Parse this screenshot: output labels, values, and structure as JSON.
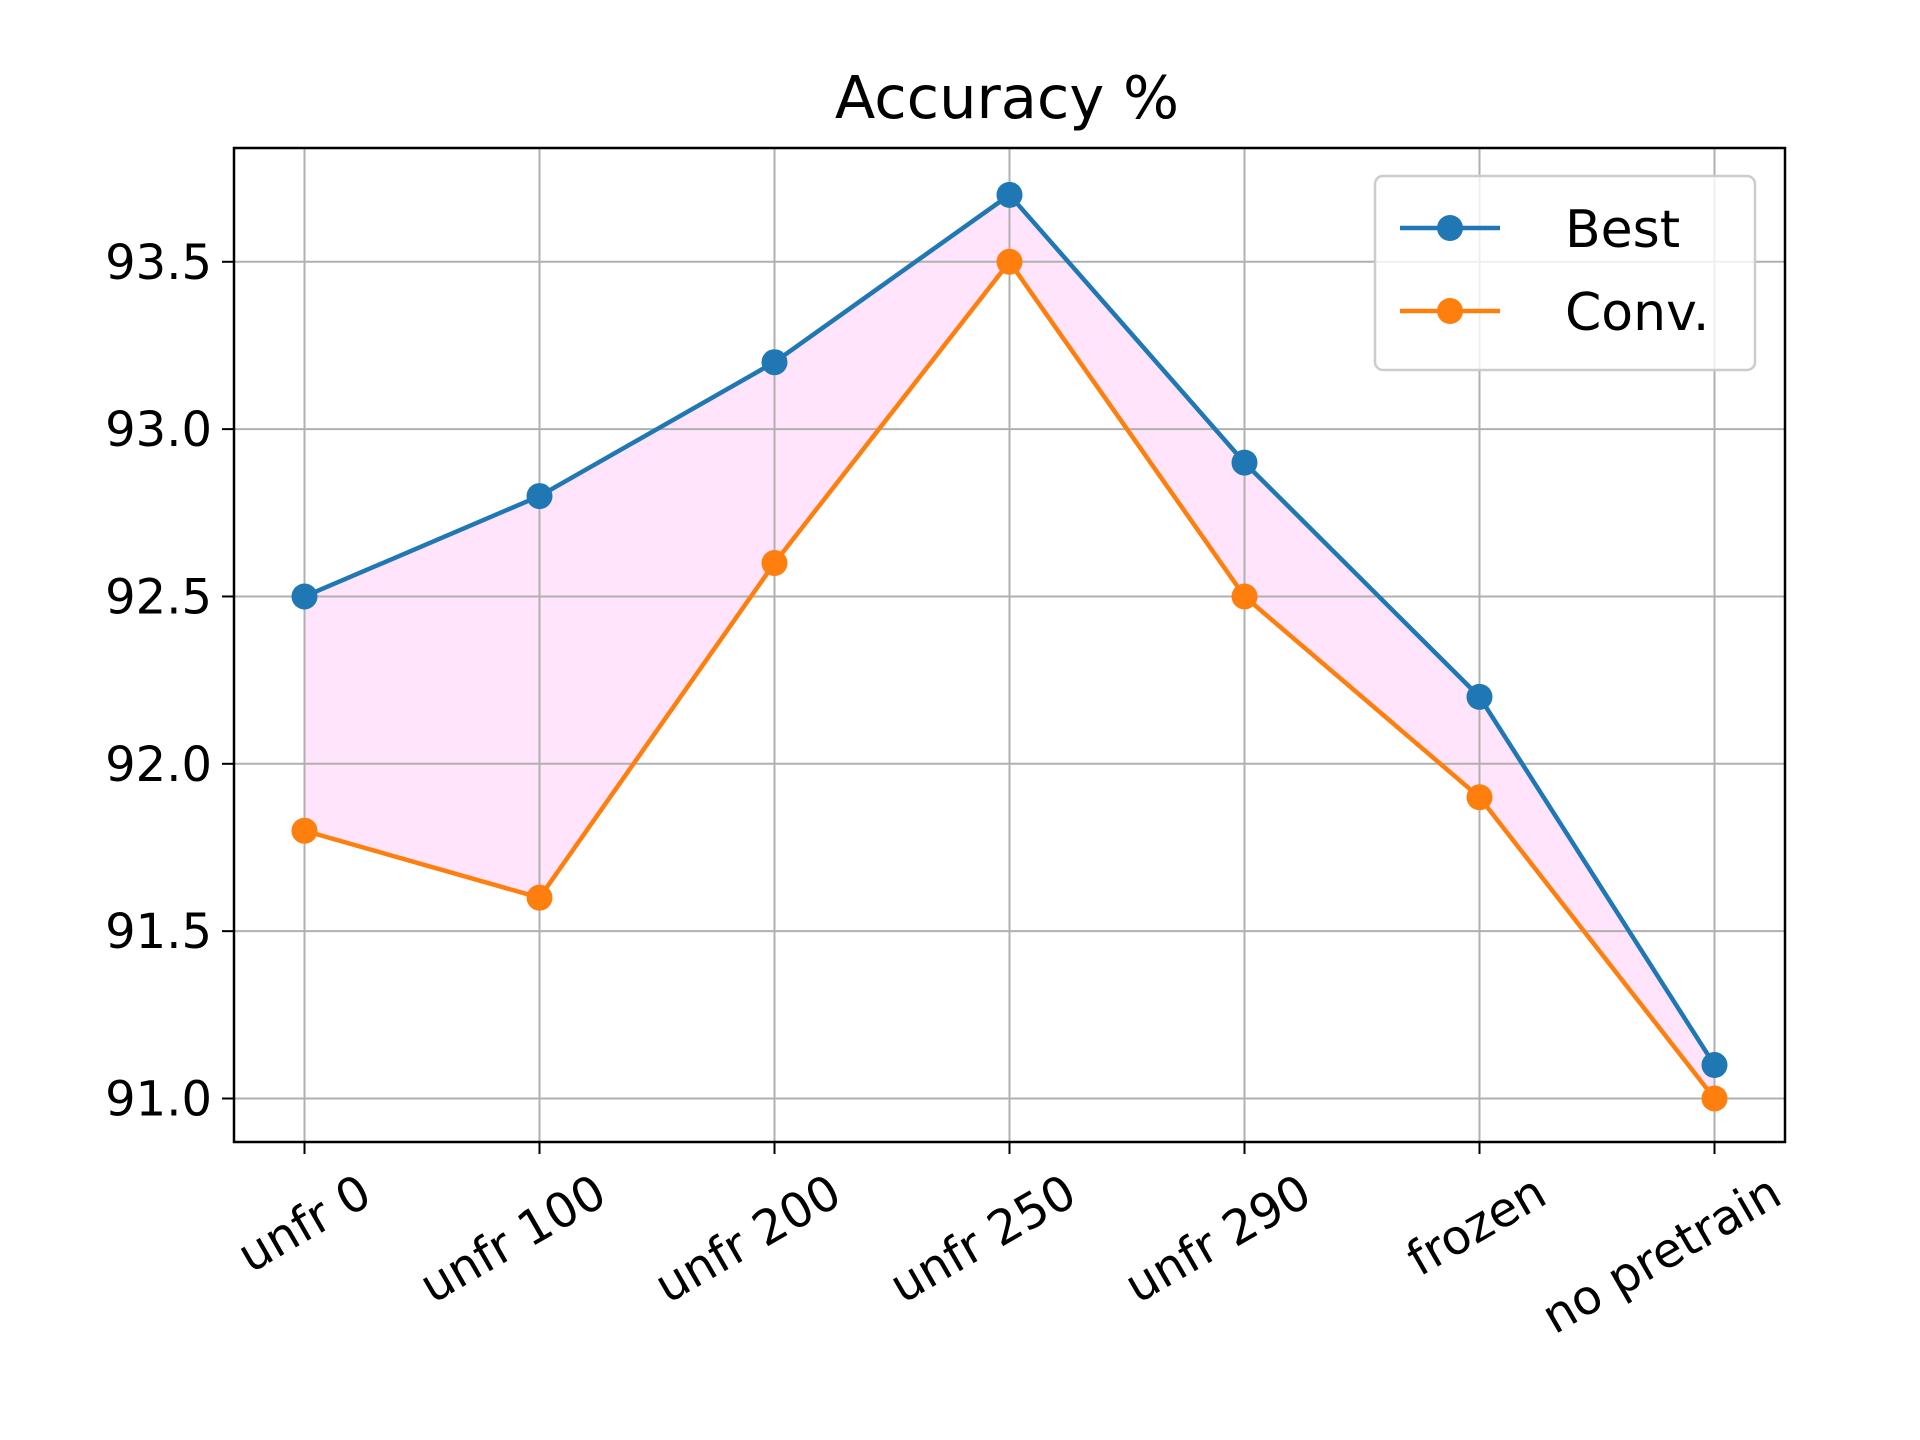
{
  "chart_data": {
    "type": "line",
    "title": "Accuracy %",
    "xlabel": "",
    "ylabel": "",
    "categories": [
      "unfr 0",
      "unfr 100",
      "unfr 200",
      "unfr 250",
      "unfr 290",
      "frozen",
      "no pretrain"
    ],
    "series": [
      {
        "name": "Best",
        "color": "#1f77b4",
        "values": [
          92.5,
          92.8,
          93.2,
          93.7,
          92.9,
          92.2,
          91.1
        ]
      },
      {
        "name": "Conv.",
        "color": "#ff7f0e",
        "values": [
          91.8,
          91.6,
          92.6,
          93.5,
          92.5,
          91.9,
          91.0
        ]
      }
    ],
    "fill_between": {
      "color": "#ffe4fb",
      "series": [
        "Best",
        "Conv."
      ]
    },
    "ylim": [
      90.87,
      93.84
    ],
    "yticks": [
      "91.0",
      "91.5",
      "92.0",
      "92.5",
      "93.0",
      "93.5"
    ],
    "ytick_values": [
      91.0,
      91.5,
      92.0,
      92.5,
      93.0,
      93.5
    ],
    "grid": true,
    "legend_position": "top-right",
    "xtick_rotation_deg": -30
  }
}
